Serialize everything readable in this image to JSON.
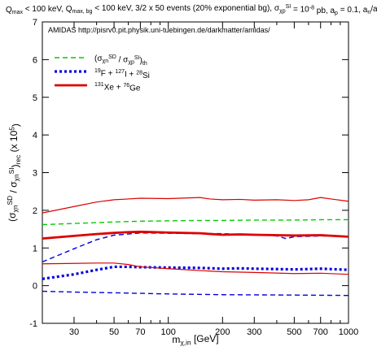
{
  "chart_data": {
    "type": "line",
    "title": {
      "parts": [
        {
          "t": "Q"
        },
        {
          "t": "max",
          "sub": true
        },
        {
          "t": " < 100 keV, Q"
        },
        {
          "t": "max, bg",
          "sub": true
        },
        {
          "t": " < 100 keV, 3/2 x 50 events (20% exponential bg), σ"
        },
        {
          "t": "χp",
          "sub": true
        },
        {
          "t": "SI",
          "sup": true
        },
        {
          "t": " = 10"
        },
        {
          "t": "-8",
          "sup": true
        },
        {
          "t": " pb, a"
        },
        {
          "t": "p",
          "sub": true
        },
        {
          "t": " = 0.1, a"
        },
        {
          "t": "n",
          "sub": true
        },
        {
          "t": "/a"
        },
        {
          "t": "p",
          "sub": true
        },
        {
          "t": " = 0.7"
        }
      ]
    },
    "annotation": "AMIDAS   http://pisrv0.pit.physik.uni-tuebingen.de/darkmatter/amidas/",
    "xlabel": {
      "parts": [
        {
          "t": "m"
        },
        {
          "t": "χ,in",
          "sub": true
        },
        {
          "t": " [GeV]"
        }
      ]
    },
    "ylabel": {
      "parts": [
        {
          "t": "(σ"
        },
        {
          "t": "χn",
          "sub": true
        },
        {
          "t": "SD",
          "sup": true
        },
        {
          "t": " / σ"
        },
        {
          "t": "χn",
          "sub": true
        },
        {
          "t": "SI",
          "sup": true
        },
        {
          "t": ")"
        },
        {
          "t": "rec",
          "sub": true
        },
        {
          "t": " (x 10"
        },
        {
          "t": "5",
          "sup": true
        },
        {
          "t": ")"
        }
      ]
    },
    "xscale": "log",
    "xlim": [
      20,
      1000
    ],
    "ylim": [
      -1,
      7
    ],
    "xticks": [
      30,
      50,
      70,
      100,
      200,
      300,
      500,
      700,
      1000
    ],
    "yticks": [
      -1,
      0,
      1,
      2,
      3,
      4,
      5,
      6,
      7
    ],
    "grid": false,
    "legend_position": "top-left",
    "series": [
      {
        "name": {
          "parts": [
            {
              "t": "(σ"
            },
            {
              "t": "χn",
              "sub": true
            },
            {
              "t": "SD",
              "sup": true
            },
            {
              "t": " / σ"
            },
            {
              "t": "χp",
              "sub": true
            },
            {
              "t": "SI",
              "sup": true
            },
            {
              "t": ")"
            },
            {
              "t": "th",
              "sub": true
            }
          ]
        },
        "role": "theory",
        "color": "#00cc00",
        "dash": "dashed",
        "x": [
          20,
          30,
          50,
          70,
          100,
          150,
          200,
          300,
          500,
          700,
          1000
        ],
        "y": [
          1.62,
          1.65,
          1.69,
          1.71,
          1.72,
          1.73,
          1.73,
          1.74,
          1.74,
          1.75,
          1.75
        ]
      },
      {
        "name": {
          "parts": [
            {
              "t": "19",
              "sup": true
            },
            {
              "t": "F + "
            },
            {
              "t": "127",
              "sup": true
            },
            {
              "t": "I + "
            },
            {
              "t": "28",
              "sup": true
            },
            {
              "t": "Si"
            }
          ]
        },
        "role": "median",
        "color": "#0000dd",
        "dash": "dotted",
        "x": [
          20,
          30,
          40,
          50,
          60,
          70,
          100,
          150,
          200,
          250,
          300,
          400,
          500,
          700,
          1000
        ],
        "y": [
          0.18,
          0.3,
          0.42,
          0.5,
          0.5,
          0.49,
          0.48,
          0.47,
          0.45,
          0.46,
          0.45,
          0.44,
          0.43,
          0.45,
          0.42
        ]
      },
      {
        "name": null,
        "role": "upper-bound",
        "color": "#0000dd",
        "dash": "dashed",
        "x": [
          20,
          30,
          40,
          50,
          60,
          70,
          100,
          150,
          200,
          250,
          300,
          400,
          450,
          500,
          700,
          1000
        ],
        "y": [
          0.63,
          0.98,
          1.22,
          1.34,
          1.37,
          1.4,
          1.39,
          1.38,
          1.38,
          1.36,
          1.36,
          1.32,
          1.25,
          1.3,
          1.32,
          1.3
        ]
      },
      {
        "name": null,
        "role": "lower-bound",
        "color": "#0000dd",
        "dash": "dashed",
        "x": [
          20,
          30,
          50,
          100,
          200,
          500,
          1000
        ],
        "y": [
          -0.15,
          -0.17,
          -0.19,
          -0.22,
          -0.24,
          -0.25,
          -0.26
        ]
      },
      {
        "name": {
          "parts": [
            {
              "t": "131",
              "sup": true
            },
            {
              "t": "Xe + "
            },
            {
              "t": "76",
              "sup": true
            },
            {
              "t": "Ge"
            }
          ]
        },
        "role": "median",
        "color": "#dd0000",
        "dash": "solid-thick",
        "x": [
          20,
          30,
          40,
          50,
          60,
          70,
          100,
          150,
          200,
          250,
          300,
          400,
          500,
          700,
          1000
        ],
        "y": [
          1.25,
          1.32,
          1.37,
          1.4,
          1.42,
          1.43,
          1.41,
          1.39,
          1.35,
          1.36,
          1.35,
          1.34,
          1.33,
          1.34,
          1.3
        ]
      },
      {
        "name": null,
        "role": "upper-bound",
        "color": "#dd0000",
        "dash": "solid",
        "x": [
          20,
          30,
          40,
          50,
          60,
          70,
          100,
          150,
          170,
          200,
          250,
          300,
          400,
          500,
          600,
          700,
          800,
          1000
        ],
        "y": [
          1.93,
          2.1,
          2.22,
          2.28,
          2.3,
          2.32,
          2.31,
          2.34,
          2.3,
          2.28,
          2.29,
          2.27,
          2.28,
          2.26,
          2.28,
          2.34,
          2.3,
          2.24
        ]
      },
      {
        "name": null,
        "role": "lower-bound",
        "color": "#dd0000",
        "dash": "solid",
        "x": [
          20,
          30,
          40,
          50,
          60,
          70,
          100,
          150,
          200,
          300,
          500,
          700,
          1000
        ],
        "y": [
          0.58,
          0.59,
          0.6,
          0.6,
          0.56,
          0.5,
          0.45,
          0.4,
          0.37,
          0.35,
          0.32,
          0.33,
          0.3
        ]
      }
    ]
  }
}
